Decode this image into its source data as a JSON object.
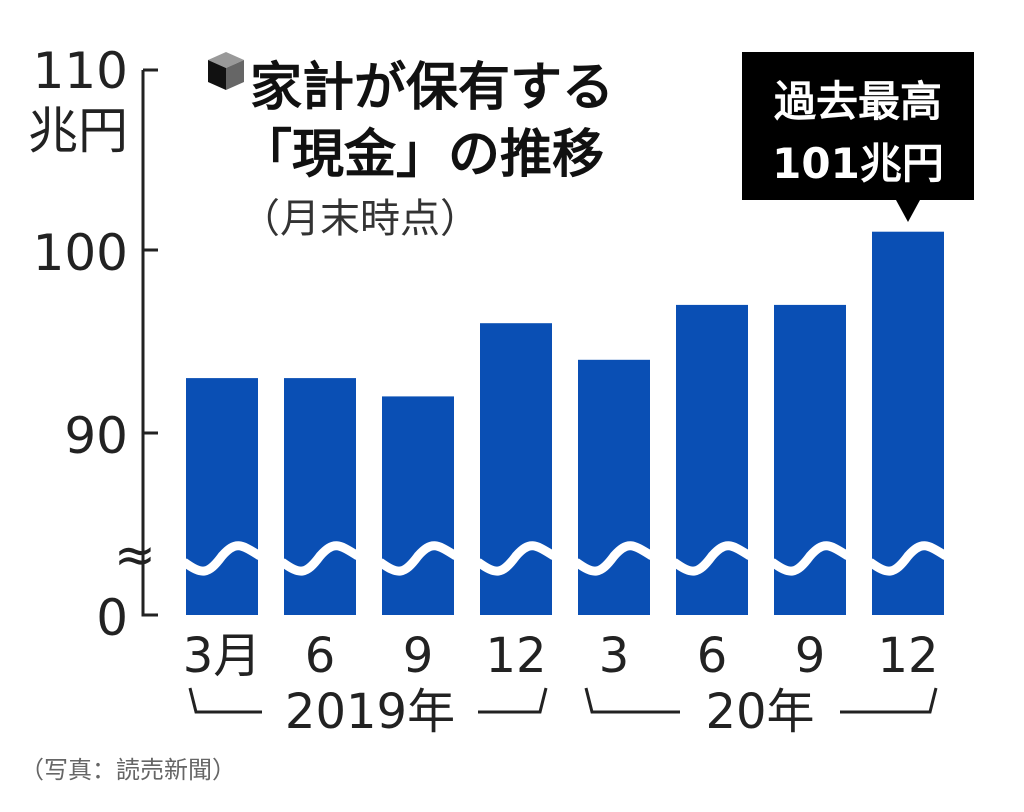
{
  "chart_data": {
    "type": "bar",
    "title_line1": "家計が保有する",
    "title_line2": "「現金」の推移",
    "subtitle": "（月末時点）",
    "ylabel": "兆円",
    "yticks": [
      "110",
      "100",
      "90",
      "0"
    ],
    "ylim": [
      0,
      110
    ],
    "axis_break": "≈",
    "categories": [
      "3月",
      "6",
      "9",
      "12",
      "3",
      "6",
      "9",
      "12"
    ],
    "years": [
      "2019年",
      "20年"
    ],
    "values": [
      93,
      93,
      92,
      96,
      94,
      97,
      97,
      101
    ],
    "bar_color": "#0a4fb4",
    "annotation": {
      "line1": "過去最高",
      "line2": "101兆円"
    }
  },
  "source_note": "（写真：読売新聞）"
}
